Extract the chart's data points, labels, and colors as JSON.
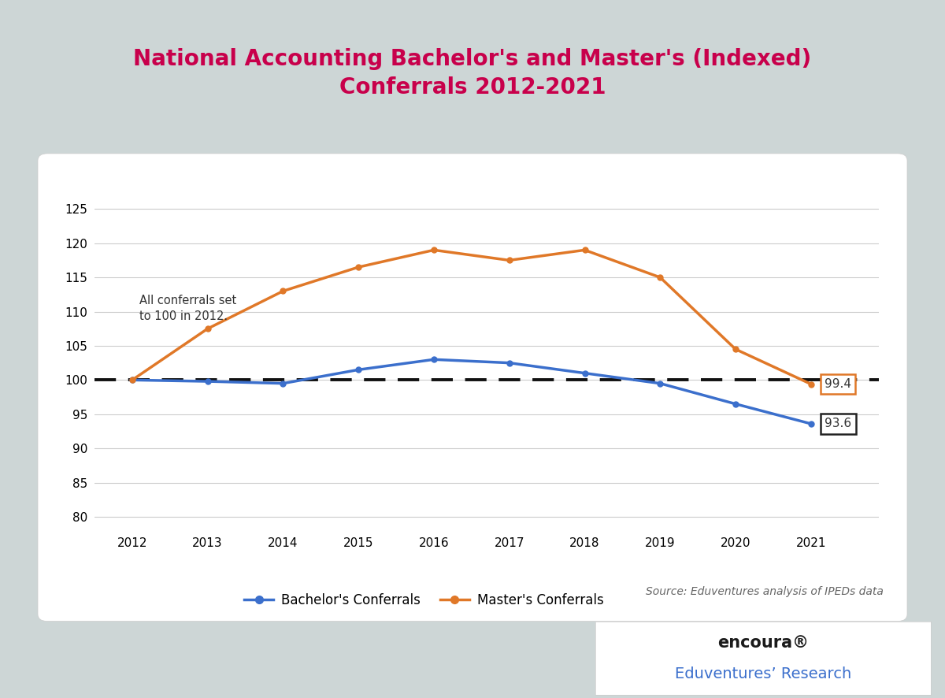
{
  "title_line1": "National Accounting Bachelor's and Master's (Indexed)",
  "title_line2": "Conferrals 2012-2021",
  "title_color": "#c8004b",
  "background_outer": "#cdd6d6",
  "background_inner": "#ffffff",
  "years": [
    2012,
    2013,
    2014,
    2015,
    2016,
    2017,
    2018,
    2019,
    2020,
    2021
  ],
  "bachelors": [
    100.0,
    99.8,
    99.5,
    101.5,
    103.0,
    102.5,
    101.0,
    99.5,
    96.5,
    93.6
  ],
  "masters": [
    100.0,
    107.5,
    113.0,
    116.5,
    119.0,
    117.5,
    119.0,
    115.0,
    104.5,
    99.4
  ],
  "reference_line": 100.0,
  "bachelors_color": "#3b6fcc",
  "masters_color": "#e07828",
  "reference_color": "#111111",
  "ylim": [
    78,
    128
  ],
  "yticks": [
    80,
    85,
    90,
    95,
    100,
    105,
    110,
    115,
    120,
    125
  ],
  "annotation_bachelor_label": "93.6",
  "annotation_master_label": "99.4",
  "annotation_note_line1": "All conferrals set",
  "annotation_note_line2": "to 100 in 2012.",
  "legend_bachelor": "Bachelor's Conferrals",
  "legend_master": "Master's Conferrals",
  "source_text": "Source: Eduventures analysis of IPEDs data",
  "line_width": 2.5
}
